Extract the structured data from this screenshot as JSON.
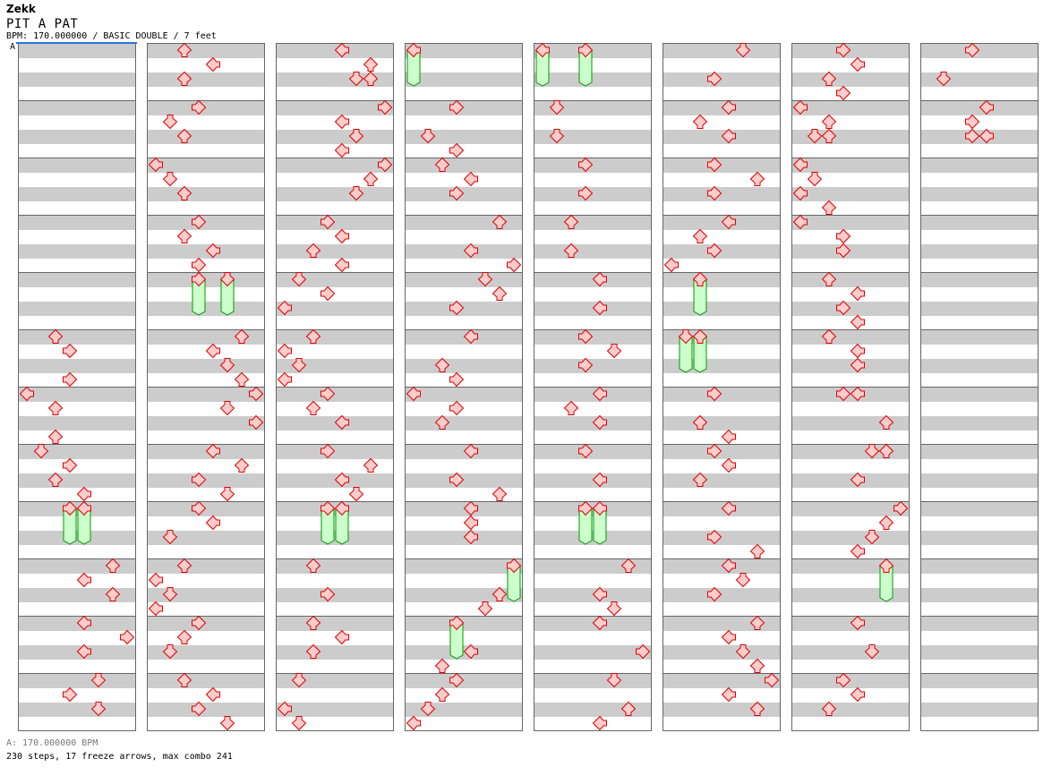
{
  "header": {
    "artist": "Zekk",
    "title": "PIT A PAT",
    "info": "BPM: 170.000000 / BASIC DOUBLE / 7 feet",
    "marker": "A"
  },
  "footer": {
    "bpm": "A: 170.000000 BPM",
    "stats": "230 steps, 17 freeze arrows, max combo 241"
  },
  "colors": {
    "arrow_fill": "#ffcccc",
    "arrow_stroke": "#dd0000",
    "freeze_fill": "#ccffcc",
    "freeze_stroke": "#009900",
    "band": "#cccccc",
    "marker": "#2a74d8"
  },
  "stepchart": {
    "lanes": [
      "left",
      "down",
      "up",
      "right",
      "left",
      "down",
      "up",
      "right"
    ],
    "beats_per_measure": 4,
    "measures_per_column": 12,
    "columns": [
      [
        [],
        [],
        [],
        [],
        [],
        [
          [
            0,
            2
          ],
          [
            1,
            3
          ],
          [
            3,
            3
          ]
        ],
        [
          [
            0,
            0
          ],
          [
            1,
            2
          ],
          [
            3,
            2
          ]
        ],
        [
          [
            0,
            1
          ],
          [
            1,
            3
          ],
          [
            2,
            2
          ],
          [
            3,
            4
          ]
        ],
        [
          [
            0,
            3,
            2.5
          ],
          [
            0,
            4,
            2.5
          ]
        ],
        [
          [
            0,
            6
          ],
          [
            1,
            4
          ],
          [
            2,
            6
          ]
        ],
        [
          [
            0,
            4
          ],
          [
            1,
            7
          ],
          [
            2,
            4
          ]
        ],
        [
          [
            0,
            5
          ],
          [
            1,
            3
          ],
          [
            2,
            5
          ]
        ]
      ],
      [
        [
          [
            0,
            2
          ],
          [
            1,
            4
          ],
          [
            2,
            2
          ]
        ],
        [
          [
            0,
            3
          ],
          [
            1,
            1
          ],
          [
            2,
            2
          ]
        ],
        [
          [
            0,
            0
          ],
          [
            1,
            1
          ],
          [
            2,
            2
          ]
        ],
        [
          [
            0,
            3
          ],
          [
            1,
            2
          ],
          [
            2,
            4
          ],
          [
            3,
            3
          ]
        ],
        [
          [
            0,
            3,
            2.5
          ],
          [
            0,
            5,
            2.5
          ]
        ],
        [
          [
            0,
            6
          ],
          [
            1,
            4
          ],
          [
            2,
            5
          ],
          [
            3,
            6
          ]
        ],
        [
          [
            0,
            7
          ],
          [
            1,
            5
          ],
          [
            2,
            7
          ]
        ],
        [
          [
            0,
            4
          ],
          [
            1,
            6
          ],
          [
            2,
            3
          ],
          [
            3,
            5
          ]
        ],
        [
          [
            0,
            3
          ],
          [
            1,
            4
          ],
          [
            2,
            1
          ]
        ],
        [
          [
            0,
            2
          ],
          [
            1,
            0
          ],
          [
            2,
            1
          ],
          [
            3,
            0
          ]
        ],
        [
          [
            0,
            3
          ],
          [
            1,
            2
          ],
          [
            2,
            1
          ]
        ],
        [
          [
            0,
            2
          ],
          [
            1,
            4
          ],
          [
            2,
            3
          ],
          [
            3,
            5
          ]
        ]
      ],
      [
        [
          [
            0,
            4
          ],
          [
            1,
            6
          ],
          [
            2,
            5
          ],
          [
            2,
            6
          ]
        ],
        [
          [
            0,
            7
          ],
          [
            1,
            4
          ],
          [
            2,
            5
          ],
          [
            3,
            4
          ]
        ],
        [
          [
            0,
            7
          ],
          [
            1,
            6
          ],
          [
            2,
            5
          ]
        ],
        [
          [
            0,
            3
          ],
          [
            1,
            4
          ],
          [
            2,
            2
          ],
          [
            3,
            4
          ]
        ],
        [
          [
            0,
            1
          ],
          [
            1,
            3
          ],
          [
            2,
            0
          ]
        ],
        [
          [
            0,
            2
          ],
          [
            1,
            0
          ],
          [
            2,
            1
          ],
          [
            3,
            0
          ]
        ],
        [
          [
            0,
            3
          ],
          [
            1,
            2
          ],
          [
            2,
            4
          ]
        ],
        [
          [
            0,
            3
          ],
          [
            1,
            6
          ],
          [
            2,
            4
          ],
          [
            3,
            5
          ]
        ],
        [
          [
            0,
            3,
            2.5
          ],
          [
            0,
            4,
            2.5
          ]
        ],
        [
          [
            0,
            2
          ],
          [
            2,
            3
          ]
        ],
        [
          [
            0,
            2
          ],
          [
            1,
            4
          ],
          [
            2,
            2
          ]
        ],
        [
          [
            0,
            1
          ],
          [
            2,
            0
          ],
          [
            3,
            1
          ]
        ]
      ],
      [
        [
          [
            0,
            0,
            2.5
          ]
        ],
        [
          [
            0,
            3
          ],
          [
            2,
            1
          ],
          [
            3,
            3
          ]
        ],
        [
          [
            0,
            2
          ],
          [
            1,
            4
          ],
          [
            2,
            3
          ]
        ],
        [
          [
            0,
            6
          ],
          [
            2,
            4
          ],
          [
            3,
            7
          ]
        ],
        [
          [
            0,
            5
          ],
          [
            1,
            6
          ],
          [
            2,
            3
          ]
        ],
        [
          [
            0,
            4
          ],
          [
            2,
            2
          ],
          [
            3,
            3
          ]
        ],
        [
          [
            0,
            0
          ],
          [
            1,
            3
          ],
          [
            2,
            2
          ]
        ],
        [
          [
            0,
            4
          ],
          [
            2,
            3
          ],
          [
            3,
            6
          ]
        ],
        [
          [
            0,
            4
          ],
          [
            1,
            4
          ],
          [
            2,
            4
          ]
        ],
        [
          [
            0,
            7,
            2.5
          ],
          [
            2,
            6
          ],
          [
            3,
            5
          ]
        ],
        [
          [
            0,
            3,
            2.5
          ],
          [
            2,
            4
          ],
          [
            3,
            2
          ]
        ],
        [
          [
            0,
            3
          ],
          [
            1,
            2
          ],
          [
            2,
            1
          ],
          [
            3,
            0
          ]
        ]
      ],
      [
        [
          [
            0,
            0,
            2.5
          ],
          [
            0,
            3,
            2.5
          ]
        ],
        [
          [
            0,
            1
          ],
          [
            2,
            1
          ]
        ],
        [
          [
            0,
            3
          ],
          [
            2,
            3
          ]
        ],
        [
          [
            0,
            2
          ],
          [
            2,
            2
          ]
        ],
        [
          [
            0,
            4
          ],
          [
            2,
            4
          ]
        ],
        [
          [
            0,
            3
          ],
          [
            1,
            5
          ],
          [
            2,
            3
          ]
        ],
        [
          [
            0,
            4
          ],
          [
            1,
            2
          ],
          [
            2,
            4
          ]
        ],
        [
          [
            0,
            3
          ],
          [
            2,
            4
          ]
        ],
        [
          [
            0,
            3,
            2.5
          ],
          [
            0,
            4,
            2.5
          ]
        ],
        [
          [
            0,
            6
          ],
          [
            2,
            4
          ],
          [
            3,
            5
          ]
        ],
        [
          [
            0,
            4
          ],
          [
            2,
            7
          ]
        ],
        [
          [
            0,
            5
          ],
          [
            2,
            6
          ],
          [
            3,
            4
          ]
        ]
      ],
      [
        [
          [
            0,
            5
          ],
          [
            2,
            3
          ]
        ],
        [
          [
            0,
            4
          ],
          [
            1,
            2
          ],
          [
            2,
            4
          ]
        ],
        [
          [
            0,
            3
          ],
          [
            1,
            6
          ],
          [
            2,
            3
          ]
        ],
        [
          [
            0,
            4
          ],
          [
            1,
            2
          ],
          [
            2,
            3
          ],
          [
            3,
            0
          ]
        ],
        [
          [
            0,
            2,
            2.5
          ]
        ],
        [
          [
            0,
            1,
            2.5
          ],
          [
            0,
            2,
            2.5
          ]
        ],
        [
          [
            0,
            3
          ],
          [
            2,
            2
          ],
          [
            3,
            4
          ]
        ],
        [
          [
            0,
            3
          ],
          [
            1,
            4
          ],
          [
            2,
            2
          ]
        ],
        [
          [
            0,
            4
          ],
          [
            2,
            3
          ],
          [
            3,
            6
          ]
        ],
        [
          [
            0,
            4
          ],
          [
            1,
            5
          ],
          [
            2,
            3
          ]
        ],
        [
          [
            0,
            6
          ],
          [
            1,
            4
          ],
          [
            2,
            5
          ],
          [
            3,
            6
          ]
        ],
        [
          [
            0,
            7
          ],
          [
            1,
            4
          ],
          [
            2,
            6
          ]
        ]
      ],
      [
        [
          [
            0,
            3
          ],
          [
            1,
            4
          ],
          [
            2,
            2
          ],
          [
            3,
            3
          ]
        ],
        [
          [
            0,
            0
          ],
          [
            1,
            2
          ],
          [
            2,
            1
          ],
          [
            2,
            2
          ]
        ],
        [
          [
            0,
            0
          ],
          [
            1,
            1
          ],
          [
            2,
            0
          ],
          [
            3,
            2
          ]
        ],
        [
          [
            0,
            0
          ],
          [
            1,
            3
          ],
          [
            2,
            3
          ]
        ],
        [
          [
            0,
            2
          ],
          [
            1,
            4
          ],
          [
            2,
            3
          ],
          [
            3,
            4
          ]
        ],
        [
          [
            0,
            2
          ],
          [
            1,
            4
          ],
          [
            2,
            4
          ]
        ],
        [
          [
            0,
            3
          ],
          [
            0,
            4
          ],
          [
            2,
            6
          ]
        ],
        [
          [
            0,
            5
          ],
          [
            0,
            6
          ],
          [
            2,
            4
          ]
        ],
        [
          [
            0,
            7
          ],
          [
            1,
            6
          ],
          [
            2,
            5
          ],
          [
            3,
            4
          ]
        ],
        [
          [
            0,
            6,
            2.5
          ]
        ],
        [
          [
            0,
            4
          ],
          [
            2,
            5
          ]
        ],
        [
          [
            0,
            3
          ],
          [
            1,
            4
          ],
          [
            2,
            2
          ]
        ]
      ],
      [
        [
          [
            0,
            3
          ],
          [
            2,
            1
          ]
        ],
        [
          [
            0,
            4
          ],
          [
            1,
            3
          ],
          [
            2,
            3
          ],
          [
            2,
            4
          ]
        ],
        [],
        [],
        [],
        [],
        [],
        [],
        [],
        [],
        [],
        []
      ]
    ]
  }
}
